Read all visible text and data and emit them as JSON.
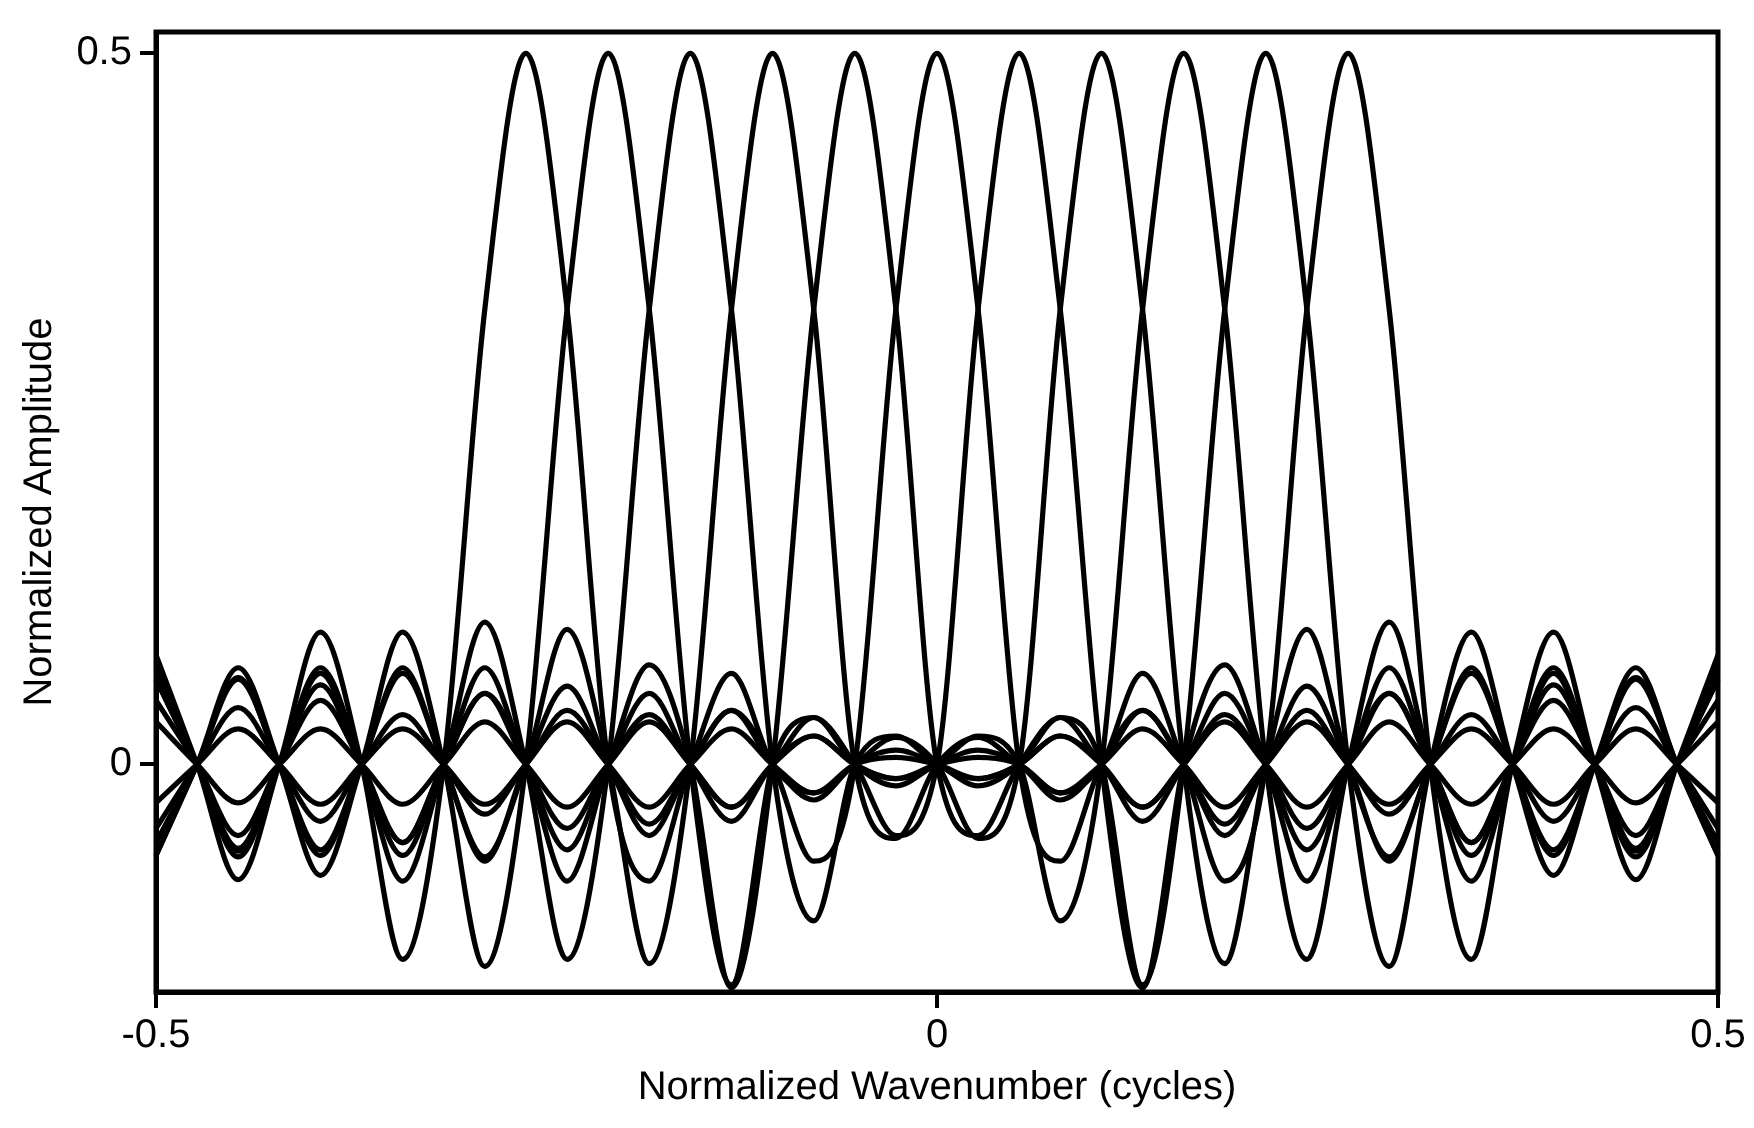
{
  "chart_data": {
    "type": "line",
    "xlabel": "Normalized Wavenumber (cycles)",
    "ylabel": "Normalized Amplitude",
    "x": [
      -0.5,
      -0.4737,
      -0.4474,
      -0.4211,
      -0.3947,
      -0.3684,
      -0.3421,
      -0.3158,
      -0.2895,
      -0.2632,
      -0.2368,
      -0.2105,
      -0.1842,
      -0.1579,
      -0.1316,
      -0.1053,
      -0.0789,
      -0.0526,
      -0.0263,
      0,
      0.0263,
      0.0526,
      0.0789,
      0.1053,
      0.1316,
      0.1579,
      0.1842,
      0.2105,
      0.2368,
      0.2632,
      0.2895,
      0.3158,
      0.3421,
      0.3684,
      0.3947,
      0.4211,
      0.4474,
      0.4737,
      0.5
    ],
    "xlim": [
      -0.5,
      0.5
    ],
    "xticks": [
      -0.5,
      0,
      0.5
    ],
    "ylim": [
      -0.16,
      0.515
    ],
    "yticks": [
      0,
      0.5
    ],
    "series": [
      {
        "color": "#000000",
        "values": [
          0.077,
          0,
          -0.081,
          0,
          0.093,
          0,
          -0.137,
          0,
          0.32,
          0.5,
          0.32,
          0,
          -0.082,
          0,
          0.064,
          0,
          -0.02,
          0,
          0.005,
          0,
          -0.01,
          0,
          0.02,
          0,
          -0.04,
          0,
          0.05,
          0,
          -0.06,
          0,
          0.068,
          0,
          -0.064,
          0,
          0.064,
          0,
          -0.061,
          0,
          0.068
        ]
      },
      {
        "color": "#000000",
        "values": [
          -0.064,
          0,
          0.068,
          0,
          -0.078,
          0,
          0.093,
          0,
          -0.142,
          0,
          0.32,
          0.5,
          0.32,
          0,
          -0.155,
          0,
          0.033,
          0,
          -0.015,
          0,
          0.01,
          0,
          -0.025,
          0,
          0.038,
          0,
          -0.05,
          0,
          0.055,
          0,
          -0.068,
          0,
          0.064,
          0,
          -0.064,
          0,
          0.061,
          0,
          -0.064
        ]
      },
      {
        "color": "#000000",
        "values": [
          0.06,
          0,
          -0.065,
          0,
          0.068,
          0,
          -0.082,
          0,
          0.1,
          0,
          -0.137,
          0,
          0.32,
          0.5,
          0.32,
          0,
          -0.11,
          0,
          0.02,
          0,
          -0.01,
          0,
          0.02,
          0,
          -0.03,
          0,
          0.035,
          0,
          -0.045,
          0,
          0.05,
          0,
          -0.055,
          0,
          0.056,
          0,
          -0.059,
          0,
          0.06
        ]
      },
      {
        "color": "#000000",
        "values": [
          -0.055,
          0,
          0.06,
          0,
          -0.06,
          0,
          0.068,
          0,
          -0.065,
          0,
          0.095,
          0,
          -0.14,
          0,
          0.32,
          0.5,
          0.32,
          0,
          -0.052,
          0,
          0.019,
          0,
          -0.02,
          0,
          0.025,
          0,
          -0.03,
          0,
          0.03,
          0,
          -0.035,
          0,
          0.035,
          0,
          -0.04,
          0,
          0.04,
          0,
          -0.045
        ]
      },
      {
        "color": "#000000",
        "values": [
          0.045,
          0,
          -0.05,
          0,
          0.045,
          0,
          -0.055,
          0,
          0.05,
          0,
          -0.082,
          0,
          0.07,
          0,
          -0.157,
          0,
          0.32,
          0.5,
          0.32,
          0,
          -0.05,
          0,
          0.033,
          0,
          -0.03,
          0,
          0.03,
          0,
          -0.03,
          0,
          0.03,
          0,
          -0.028,
          0,
          0.025,
          0,
          -0.027,
          0,
          0.03
        ]
      },
      {
        "color": "#000000",
        "values": [
          -0.027,
          0,
          0.025,
          0,
          -0.028,
          0,
          0.025,
          0,
          -0.028,
          0,
          0.038,
          0,
          -0.042,
          0,
          0.038,
          0,
          -0.068,
          0,
          0.32,
          0.5,
          0.32,
          0,
          -0.068,
          0,
          0.038,
          0,
          -0.042,
          0,
          0.038,
          0,
          -0.028,
          0,
          0.025,
          0,
          -0.028,
          0,
          0.025,
          0,
          -0.027
        ]
      },
      {
        "color": "#000000",
        "values": [
          0.03,
          0,
          -0.027,
          0,
          0.025,
          0,
          -0.028,
          0,
          0.03,
          0,
          -0.03,
          0,
          0.03,
          0,
          -0.03,
          0,
          0.033,
          0,
          -0.05,
          0,
          0.32,
          0.5,
          0.32,
          0,
          -0.157,
          0,
          0.07,
          0,
          -0.082,
          0,
          0.05,
          0,
          -0.055,
          0,
          0.045,
          0,
          -0.05,
          0,
          0.045
        ]
      },
      {
        "color": "#000000",
        "values": [
          -0.045,
          0,
          0.04,
          0,
          -0.04,
          0,
          0.035,
          0,
          -0.035,
          0,
          0.03,
          0,
          -0.03,
          0,
          0.025,
          0,
          -0.02,
          0,
          0.019,
          0,
          -0.052,
          0,
          0.32,
          0.5,
          0.32,
          0,
          -0.14,
          0,
          0.095,
          0,
          -0.065,
          0,
          0.068,
          0,
          -0.06,
          0,
          0.06,
          0,
          -0.055
        ]
      },
      {
        "color": "#000000",
        "values": [
          0.06,
          0,
          -0.059,
          0,
          0.056,
          0,
          -0.055,
          0,
          0.05,
          0,
          -0.045,
          0,
          0.035,
          0,
          -0.03,
          0,
          0.02,
          0,
          -0.01,
          0,
          0.02,
          0,
          -0.11,
          0,
          0.32,
          0.5,
          0.32,
          0,
          -0.137,
          0,
          0.1,
          0,
          -0.082,
          0,
          0.068,
          0,
          -0.065,
          0,
          0.06
        ]
      },
      {
        "color": "#000000",
        "values": [
          -0.064,
          0,
          0.061,
          0,
          -0.064,
          0,
          0.064,
          0,
          -0.068,
          0,
          0.055,
          0,
          -0.05,
          0,
          0.038,
          0,
          -0.025,
          0,
          0.01,
          0,
          -0.015,
          0,
          0.033,
          0,
          -0.155,
          0,
          0.32,
          0.5,
          0.32,
          0,
          -0.142,
          0,
          0.093,
          0,
          -0.078,
          0,
          0.068,
          0,
          -0.064
        ]
      },
      {
        "color": "#000000",
        "values": [
          0.068,
          0,
          -0.061,
          0,
          0.064,
          0,
          -0.064,
          0,
          0.068,
          0,
          -0.06,
          0,
          0.05,
          0,
          -0.04,
          0,
          0.02,
          0,
          -0.01,
          0,
          0.005,
          0,
          -0.02,
          0,
          0.064,
          0,
          -0.082,
          0,
          0.32,
          0.5,
          0.32,
          0,
          -0.137,
          0,
          0.093,
          0,
          -0.081,
          0,
          0.077
        ]
      }
    ]
  }
}
